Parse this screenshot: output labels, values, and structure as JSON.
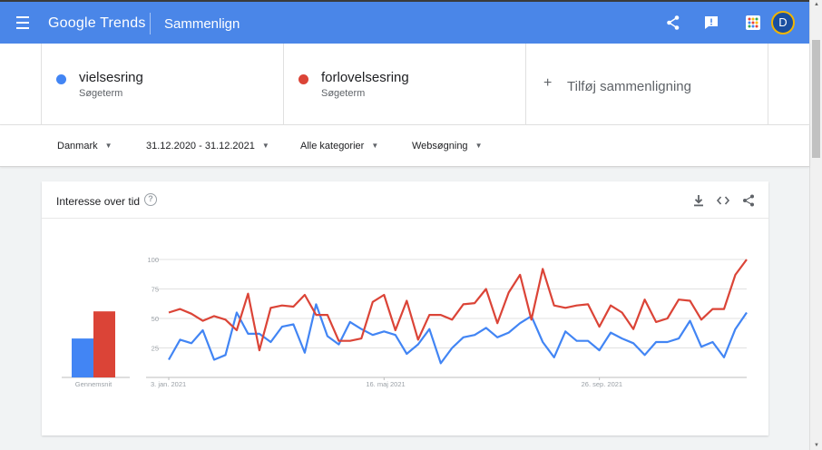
{
  "header": {
    "logo": "Google Trends",
    "title": "Sammenlign"
  },
  "terms": [
    {
      "name": "vielsesring",
      "type": "Søgeterm",
      "color": "#4285f4"
    },
    {
      "name": "forlovelsesring",
      "type": "Søgeterm",
      "color": "#db4437"
    }
  ],
  "add_compare": "Tilføj sammenligning",
  "filters": {
    "country": "Danmark",
    "period": "31.12.2020 - 31.12.2021",
    "category": "Alle kategorier",
    "search_type": "Websøgning"
  },
  "card": {
    "title": "Interesse over tid"
  },
  "avatar": {
    "initial": "D"
  },
  "chart_data": {
    "type": "line",
    "y_ticks": [
      "100",
      "75",
      "50",
      "25"
    ],
    "ylim": [
      0,
      100
    ],
    "x_tick_labels": [
      {
        "label": "3. jan. 2021",
        "index": 0
      },
      {
        "label": "16. maj 2021",
        "index": 19
      },
      {
        "label": "26. sep. 2021",
        "index": 38
      }
    ],
    "average_label": "Gennemsnit",
    "averages": [
      33,
      56
    ],
    "series": [
      {
        "color": "#4285f4",
        "values": [
          15,
          32,
          29,
          40,
          15,
          19,
          55,
          37,
          37,
          30,
          43,
          45,
          21,
          62,
          35,
          28,
          47,
          41,
          36,
          39,
          36,
          20,
          28,
          41,
          12,
          25,
          34,
          36,
          42,
          34,
          38,
          46,
          52,
          30,
          17,
          39,
          31,
          31,
          23,
          38,
          33,
          29,
          19,
          30,
          30,
          33,
          48,
          26,
          30,
          17,
          41,
          55
        ]
      },
      {
        "color": "#db4437",
        "values": [
          55,
          58,
          54,
          48,
          52,
          49,
          40,
          71,
          23,
          59,
          61,
          60,
          70,
          53,
          53,
          31,
          31,
          33,
          64,
          70,
          40,
          65,
          32,
          53,
          53,
          49,
          62,
          63,
          75,
          46,
          72,
          87,
          49,
          92,
          61,
          59,
          61,
          62,
          43,
          61,
          55,
          41,
          66,
          47,
          50,
          66,
          65,
          49,
          58,
          58,
          87,
          100
        ]
      }
    ]
  }
}
